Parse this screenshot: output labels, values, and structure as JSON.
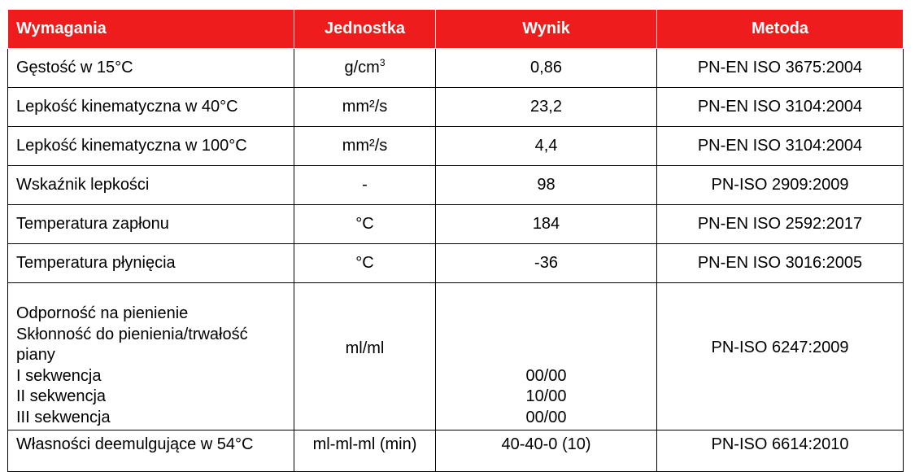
{
  "header": {
    "requirements": "Wymagania",
    "unit": "Jednostka",
    "result": "Wynik",
    "method": "Metoda"
  },
  "rows": [
    {
      "name": "Gęstość w 15°C",
      "unit_base": "g/cm",
      "unit_sup": "3",
      "result": "0,86",
      "method": "PN-EN ISO 3675:2004"
    },
    {
      "name": "Lepkość kinematyczna w 40°C",
      "unit": "mm²/s",
      "result": "23,2",
      "method": "PN-EN ISO 3104:2004"
    },
    {
      "name": "Lepkość kinematyczna w 100°C",
      "unit": "mm²/s",
      "result": "4,4",
      "method": "PN-EN ISO 3104:2004"
    },
    {
      "name": "Wskaźnik lepkości",
      "unit": "-",
      "result": "98",
      "method": "PN-ISO 2909:2009"
    },
    {
      "name": "Temperatura zapłonu",
      "unit": "°C",
      "result": "184",
      "method": "PN-EN ISO 2592:2017"
    },
    {
      "name": "Temperatura płynięcia",
      "unit": "°C",
      "result": "-36",
      "method": "PN-EN ISO 3016:2005"
    }
  ],
  "foam": {
    "name_lines": [
      "Odporność na pienienie",
      "Skłonność do pienienia/trwałość",
      "piany",
      "I sekwencja",
      "II sekwencja",
      "III sekwencja"
    ],
    "unit": "ml/ml",
    "results": [
      "00/00",
      "10/00",
      "00/00"
    ],
    "method": "PN-ISO 6247:2009"
  },
  "demulsify": {
    "name": "Własności deemulgujące w 54°C",
    "unit": "ml-ml-ml (min)",
    "result": "40-40-0 (10)",
    "method": "PN-ISO 6614:2010"
  },
  "colors": {
    "header_bg": "#ee1c1c",
    "header_text": "#ffffff"
  }
}
